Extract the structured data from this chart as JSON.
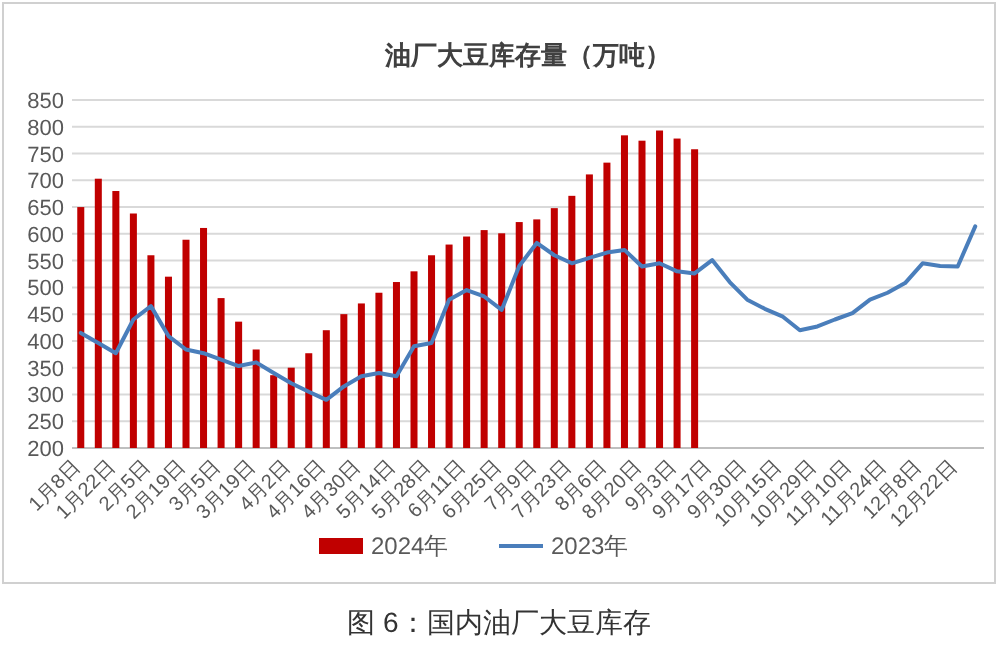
{
  "chart_data": {
    "type": "bar",
    "title": "油厂大豆库存量（万吨）",
    "categories": [
      "1月8日",
      null,
      "1月22日",
      null,
      "2月5日",
      null,
      "2月19日",
      null,
      "3月5日",
      null,
      "3月19日",
      null,
      "4月2日",
      null,
      "4月16日",
      null,
      "4月30日",
      null,
      "5月14日",
      null,
      "5月28日",
      null,
      "6月11日",
      null,
      "6月25日",
      null,
      "7月9日",
      null,
      "7月23日",
      null,
      "8月6日",
      null,
      "8月20日",
      null,
      "9月3日",
      null,
      "9月17日",
      null,
      "9月30日",
      null,
      "10月15日",
      null,
      "10月29日",
      null,
      "11月10日",
      null,
      "11月24日",
      null,
      "12月8日",
      null,
      "12月22日",
      null
    ],
    "series": [
      {
        "name": "2024年",
        "color": "#c00000",
        "values": [
          650,
          703,
          680,
          638,
          560,
          520,
          589,
          611,
          480,
          436,
          384,
          336,
          350,
          377,
          420,
          450,
          470,
          490,
          510,
          530,
          560,
          580,
          595,
          607,
          601,
          622,
          627,
          648,
          671,
          711,
          733,
          784,
          774,
          793,
          778,
          758,
          null,
          null,
          null,
          null,
          null,
          null,
          null,
          null,
          null,
          null,
          null,
          null,
          null,
          null,
          null,
          null
        ]
      },
      {
        "name": "2023年",
        "type": "line",
        "color": "#4a7ebb",
        "values": [
          415,
          396,
          377,
          440,
          465,
          409,
          384,
          377,
          365,
          353,
          360,
          340,
          321,
          305,
          290,
          315,
          334,
          340,
          334,
          390,
          396,
          477,
          495,
          483,
          458,
          540,
          583,
          560,
          545,
          555,
          565,
          570,
          539,
          545,
          530,
          526,
          551,
          510,
          477,
          460,
          446,
          420,
          427,
          440,
          452,
          477,
          490,
          508,
          545,
          540,
          539,
          614
        ]
      }
    ],
    "ylim": [
      200,
      850
    ],
    "yticks": [
      200,
      250,
      300,
      350,
      400,
      450,
      500,
      550,
      600,
      650,
      700,
      750,
      800,
      850
    ],
    "grid": "y",
    "legend": "bottom",
    "annotations": [
      "图 6：国内油厂大豆库存"
    ]
  }
}
